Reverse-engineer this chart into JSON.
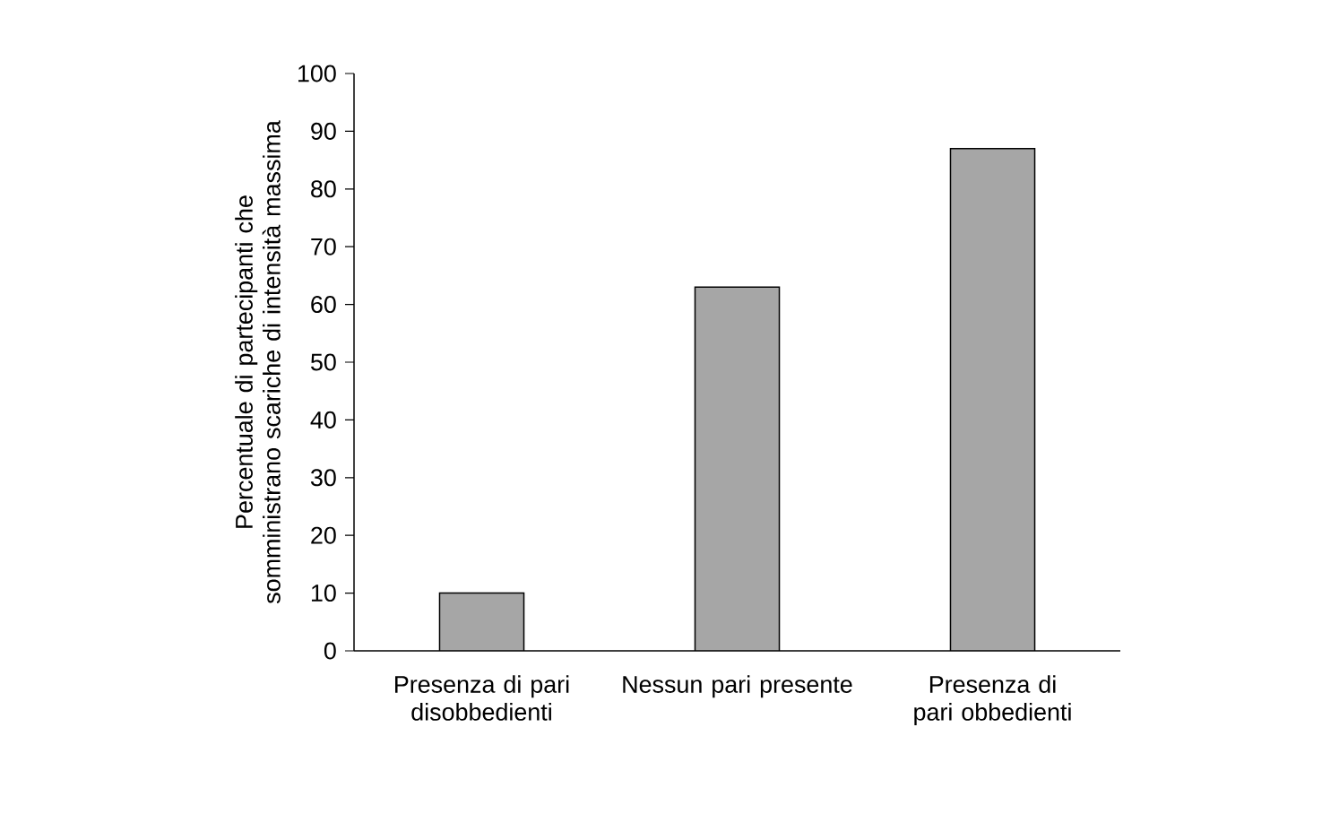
{
  "chart_data": {
    "type": "bar",
    "ylabel": "Percentuale di partecipanti che somministrano scariche di intensità massima",
    "categories": [
      "Presenza di pari disobbedienti",
      "Nessun pari presente",
      "Presenza di pari obbedienti"
    ],
    "values": [
      10,
      63,
      87
    ],
    "color": "#a6a6a6",
    "ylim": [
      0,
      100
    ],
    "yticks": [
      0,
      10,
      20,
      30,
      40,
      50,
      60,
      70,
      80,
      90,
      100
    ]
  }
}
